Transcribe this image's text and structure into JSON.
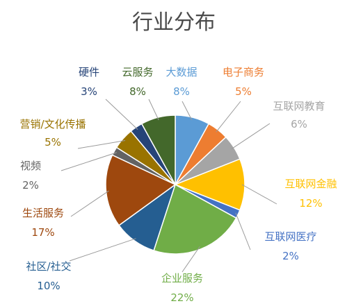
{
  "chart_data": {
    "type": "pie",
    "title": "行业分布",
    "slices": [
      {
        "name": "大数据",
        "value": 8,
        "label": "8%",
        "color": "#5B9BD5"
      },
      {
        "name": "电子商务",
        "value": 5,
        "label": "5%",
        "color": "#ED7D31"
      },
      {
        "name": "互联网教育",
        "value": 6,
        "label": "6%",
        "color": "#A5A5A5"
      },
      {
        "name": "互联网金融",
        "value": 12,
        "label": "12%",
        "color": "#FFC000"
      },
      {
        "name": "互联网医疗",
        "value": 2,
        "label": "2%",
        "color": "#4472C4"
      },
      {
        "name": "企业服务",
        "value": 22,
        "label": "22%",
        "color": "#70AD47"
      },
      {
        "name": "社区/社交",
        "value": 10,
        "label": "10%",
        "color": "#255E91"
      },
      {
        "name": "生活服务",
        "value": 17,
        "label": "17%",
        "color": "#9E480E"
      },
      {
        "name": "视频",
        "value": 2,
        "label": "2%",
        "color": "#636363"
      },
      {
        "name": "营销/文化传播",
        "value": 5,
        "label": "5%",
        "color": "#997300"
      },
      {
        "name": "硬件",
        "value": 3,
        "label": "3%",
        "color": "#264478"
      },
      {
        "name": "云服务",
        "value": 8,
        "label": "8%",
        "color": "#43682B"
      }
    ],
    "legend": "none"
  }
}
